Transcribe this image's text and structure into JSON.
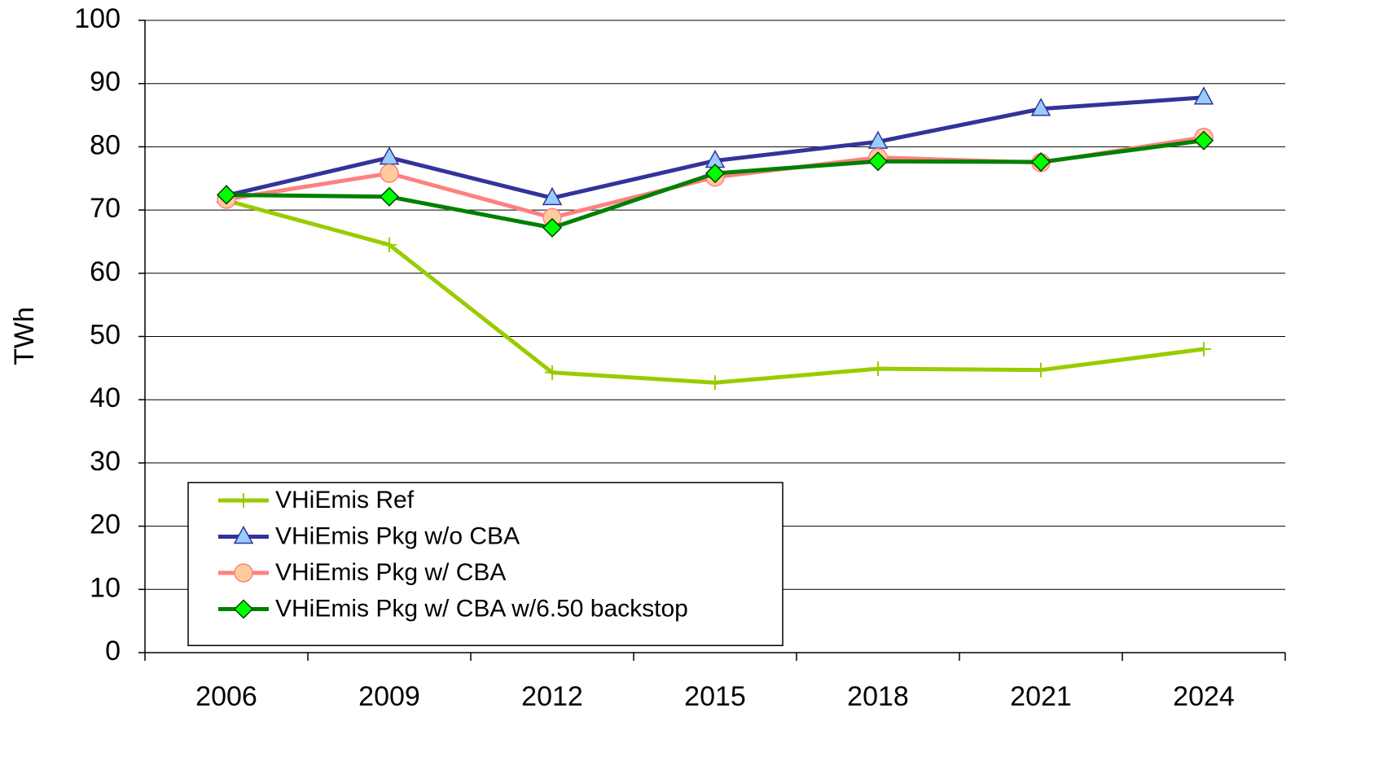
{
  "chart_data": {
    "type": "line",
    "y_label": "TWh",
    "categories": [
      "2006",
      "2009",
      "2012",
      "2015",
      "2018",
      "2021",
      "2024"
    ],
    "series": [
      {
        "name": "VHiEmis Ref",
        "color": "#99cc00",
        "marker": "plus",
        "marker_color": "#99cc00",
        "values": [
          71.5,
          64.5,
          44.3,
          42.7,
          44.9,
          44.7,
          48.0
        ]
      },
      {
        "name": "VHiEmis Pkg w/o CBA",
        "color": "#333399",
        "marker": "triangle",
        "marker_color": "#99ccff",
        "values": [
          72.3,
          78.3,
          71.9,
          77.8,
          80.8,
          86.0,
          87.8
        ]
      },
      {
        "name": "VHiEmis Pkg w/ CBA",
        "color": "#ff8080",
        "marker": "circle",
        "marker_color": "#ffcc99",
        "values": [
          71.7,
          75.8,
          68.8,
          75.2,
          78.3,
          77.5,
          81.5
        ]
      },
      {
        "name": "VHiEmis Pkg w/ CBA w/6.50 backstop",
        "color": "#008000",
        "marker": "diamond",
        "marker_color": "#00ff00",
        "values": [
          72.4,
          72.1,
          67.2,
          75.8,
          77.7,
          77.6,
          81.0
        ]
      }
    ],
    "ylim": [
      0,
      100
    ],
    "yticks": [
      0,
      10,
      20,
      30,
      40,
      50,
      60,
      70,
      80,
      90,
      100
    ],
    "grid": true,
    "legend": "lower left"
  }
}
